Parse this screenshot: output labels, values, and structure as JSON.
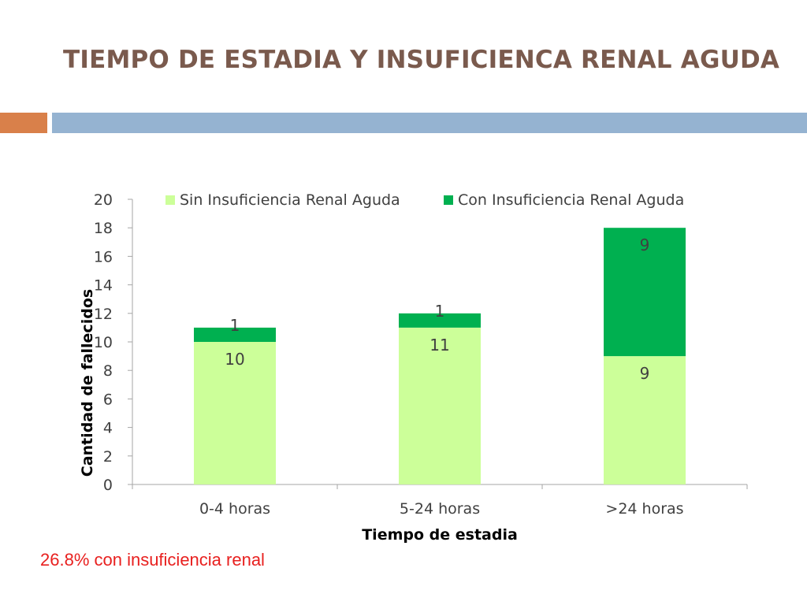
{
  "slide": {
    "title": "TIEMPO DE ESTADIA Y INSUFICIENCA RENAL AGUDA",
    "footnote": "26.8% con insuficiencia renal"
  },
  "colors": {
    "title": "#7a5a4d",
    "accent_orange": "#d9804a",
    "accent_blue": "#95b3d1",
    "footnote": "#e8201f"
  },
  "chart_data": {
    "type": "bar",
    "stacked": true,
    "categories": [
      "0-4 horas",
      "5-24 horas",
      ">24 horas"
    ],
    "series": [
      {
        "name": "Sin Insuficiencia Renal Aguda",
        "values": [
          10,
          11,
          9
        ],
        "color": "#ccff99"
      },
      {
        "name": "Con Insuficiencia Renal Aguda",
        "values": [
          1,
          1,
          9
        ],
        "color": "#00b050"
      }
    ],
    "xlabel": "Tiempo de estadia",
    "ylabel": "Cantidad de fallecidos",
    "ylim": [
      0,
      20
    ],
    "yticks": [
      0,
      2,
      4,
      6,
      8,
      10,
      12,
      14,
      16,
      18,
      20
    ],
    "grid": false,
    "legend": "top"
  }
}
